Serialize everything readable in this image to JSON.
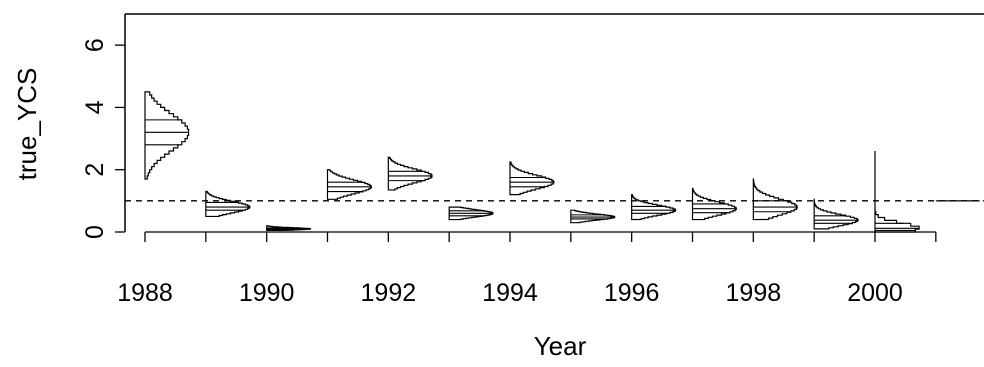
{
  "chart_data": {
    "type": "violin-histogram",
    "xlabel": "Year",
    "ylabel": "true_YCS",
    "ylim": [
      0,
      7
    ],
    "xlim": [
      1988,
      2002
    ],
    "x_ticks": [
      1988,
      1990,
      1992,
      1994,
      1996,
      1998,
      2000
    ],
    "y_ticks": [
      0,
      2,
      4,
      6
    ],
    "reference_line": {
      "y": 1,
      "style": "dashed"
    },
    "grid": false,
    "series": [
      {
        "year": 1988,
        "min": 1.7,
        "q25": 2.8,
        "median": 3.2,
        "q75": 3.6,
        "max": 4.5
      },
      {
        "year": 1989,
        "min": 0.5,
        "q25": 0.7,
        "median": 0.8,
        "q75": 0.95,
        "max": 1.3
      },
      {
        "year": 1990,
        "min": 0.05,
        "q25": 0.08,
        "median": 0.1,
        "q75": 0.13,
        "max": 0.2
      },
      {
        "year": 1991,
        "min": 1.05,
        "q25": 1.3,
        "median": 1.45,
        "q75": 1.6,
        "max": 2.0
      },
      {
        "year": 1992,
        "min": 1.35,
        "q25": 1.65,
        "median": 1.8,
        "q75": 1.95,
        "max": 2.4
      },
      {
        "year": 1993,
        "min": 0.4,
        "q25": 0.52,
        "median": 0.6,
        "q75": 0.68,
        "max": 0.8
      },
      {
        "year": 1994,
        "min": 1.2,
        "q25": 1.45,
        "median": 1.6,
        "q75": 1.75,
        "max": 2.25
      },
      {
        "year": 1995,
        "min": 0.3,
        "q25": 0.42,
        "median": 0.48,
        "q75": 0.55,
        "max": 0.7
      },
      {
        "year": 1996,
        "min": 0.4,
        "q25": 0.6,
        "median": 0.7,
        "q75": 0.82,
        "max": 1.2
      },
      {
        "year": 1997,
        "min": 0.4,
        "q25": 0.62,
        "median": 0.75,
        "q75": 0.9,
        "max": 1.4
      },
      {
        "year": 1998,
        "min": 0.4,
        "q25": 0.65,
        "median": 0.8,
        "q75": 1.0,
        "max": 1.7
      },
      {
        "year": 1999,
        "min": 0.1,
        "q25": 0.28,
        "median": 0.38,
        "q75": 0.52,
        "max": 1.05
      },
      {
        "year": 2000,
        "min": 0.0,
        "q25": 0.05,
        "median": 0.12,
        "q75": 0.28,
        "max": 2.6
      },
      {
        "year": 2001,
        "min": 1.0,
        "q25": 1.0,
        "median": 1.0,
        "q75": 1.0,
        "max": 1.0
      }
    ]
  }
}
